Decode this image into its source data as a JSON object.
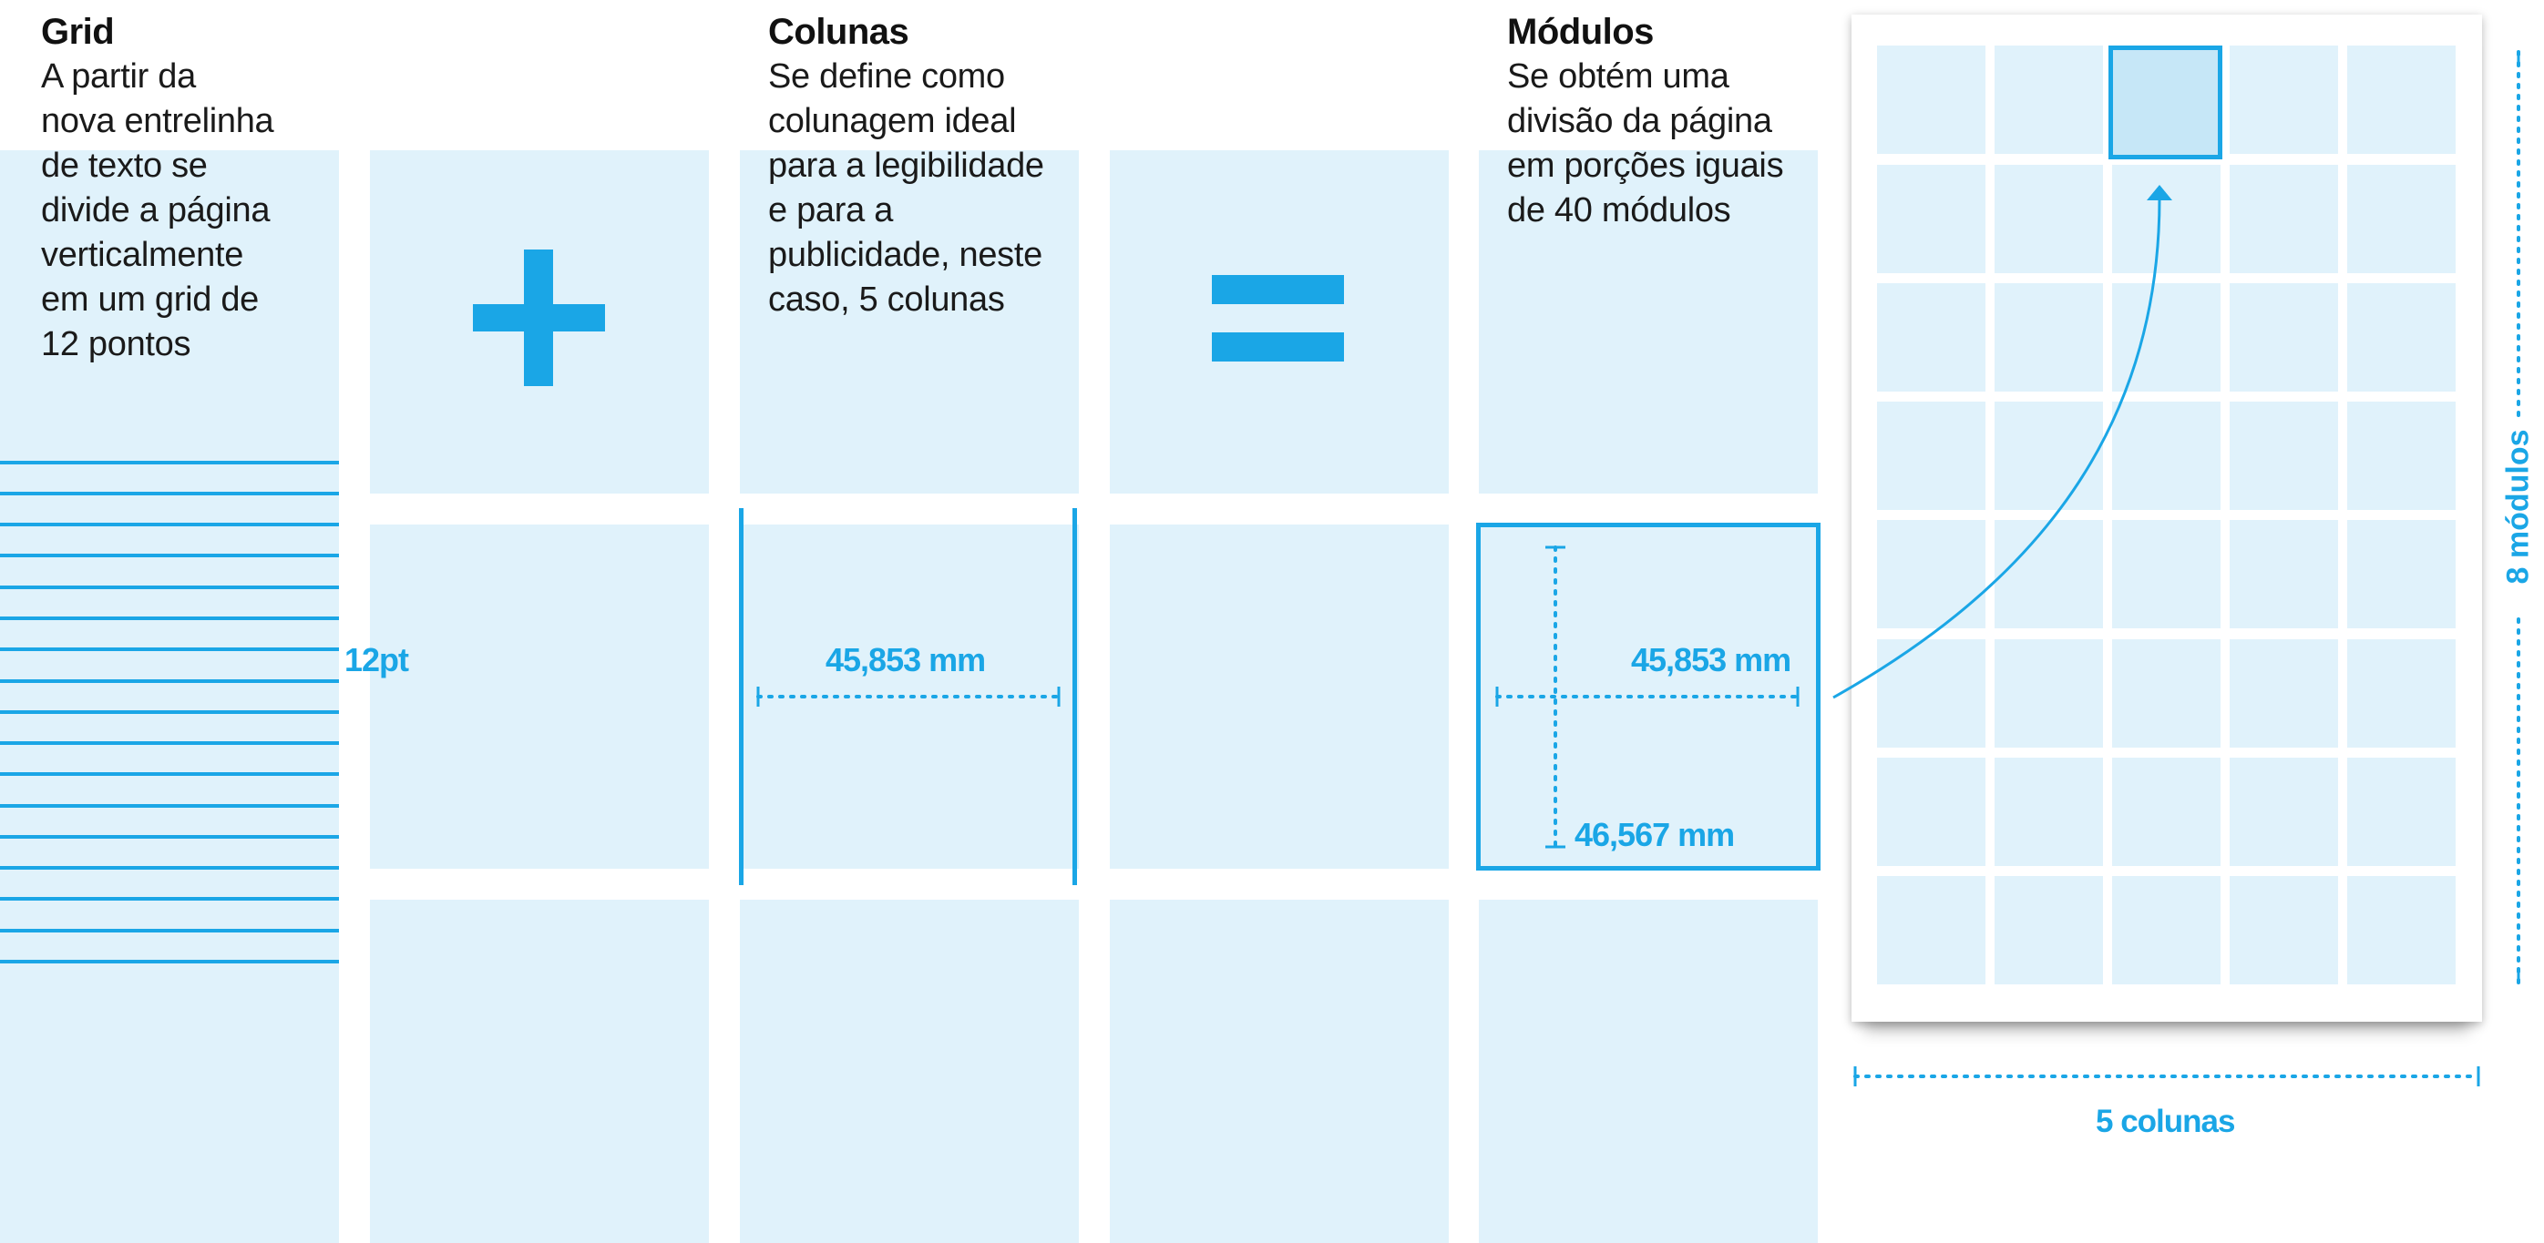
{
  "sections": [
    {
      "title": "Grid",
      "description": "A partir da\nnova entrelinha\nde texto se\ndivide a página\nverticalmente\nem um grid de\n12 pontos"
    },
    {
      "title": "Colunas",
      "description": "Se define como\ncolunagem ideal\npara a legibilidade\ne para a\npublicidade, neste\ncaso, 5 colunas"
    },
    {
      "title": "Módulos",
      "description": "Se obtém uma\ndivisão da página\nem porções iguais\nde 40 módulos"
    }
  ],
  "operators": {
    "plus": "+",
    "equals": "="
  },
  "measurements": {
    "baseline": "12pt",
    "column_width": "45,853 mm",
    "module_width": "45,853 mm",
    "module_height": "46,567 mm"
  },
  "page_diagram": {
    "columns": 5,
    "rows": 8,
    "highlighted_module": {
      "row": 1,
      "column": 3
    },
    "columns_label": "5 colunas",
    "rows_label": "8 módulos"
  },
  "colors": {
    "accent": "#1aa6e6",
    "module_fill": "#e0f2fb",
    "highlight_fill": "#c6e7f7",
    "text": "#111111"
  }
}
